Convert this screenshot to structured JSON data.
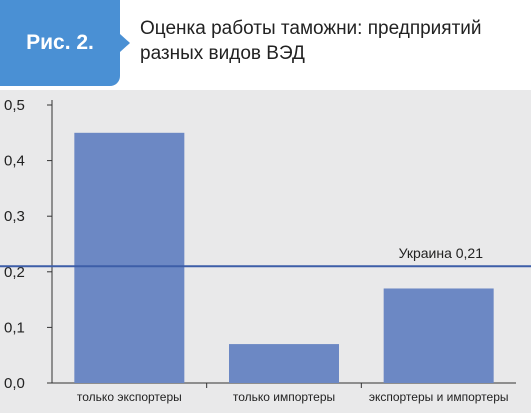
{
  "header": {
    "figure_label": "Рис. 2.",
    "title": "Оценка работы таможни: предприятий разных видов ВЭД"
  },
  "colors": {
    "badge": "#4a90d4",
    "bar": "#6c88c4",
    "reference_line": "#3d5ea8",
    "panel": "#e9e9ea"
  },
  "chart_data": {
    "type": "bar",
    "categories": [
      "только экспортеры",
      "только импортеры",
      "экспортеры и импортеры"
    ],
    "values": [
      0.45,
      0.07,
      0.17
    ],
    "ylim": [
      0,
      0.5
    ],
    "yticks": [
      0,
      0.1,
      0.2,
      0.3,
      0.4,
      0.5
    ],
    "ytick_labels": [
      "0,0",
      "0,1",
      "0,2",
      "0,3",
      "0,4",
      "0,5"
    ],
    "reference_line": {
      "label": "Украина 0,21",
      "value": 0.21
    },
    "grid": false,
    "xlabel": "",
    "ylabel": ""
  }
}
